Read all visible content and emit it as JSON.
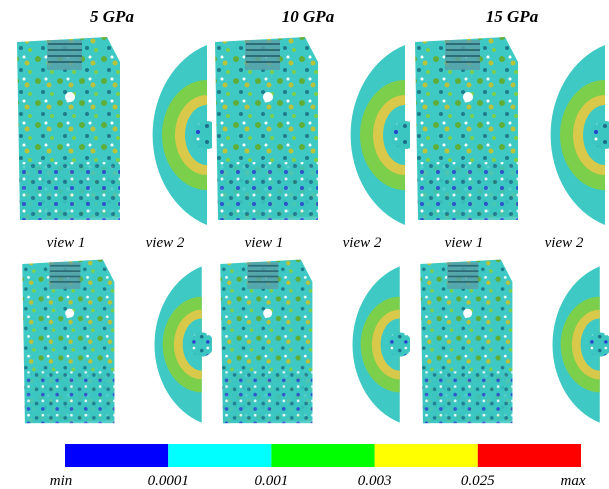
{
  "column_headers": [
    "5 GPa",
    "10 GPa",
    "15 GPa"
  ],
  "view_labels": [
    "view 1",
    "view 2",
    "view 1",
    "view 2",
    "view 1",
    "view 2"
  ],
  "colorbar": {
    "colors": [
      "#0000ff",
      "#00ffff",
      "#00ff00",
      "#ffff00",
      "#ff0000"
    ],
    "labels": [
      "min",
      "0.0001",
      "0.001",
      "0.003",
      "0.025",
      "max"
    ]
  }
}
